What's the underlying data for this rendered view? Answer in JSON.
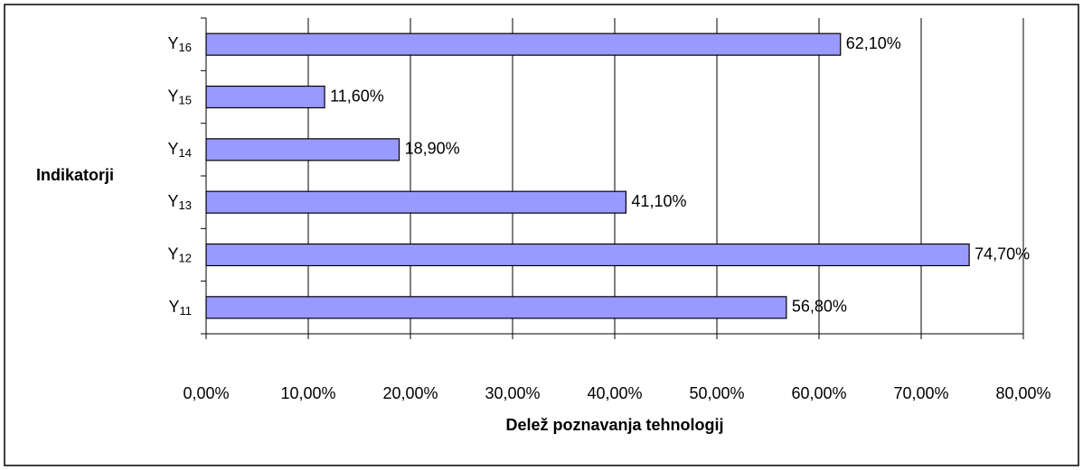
{
  "chart_data": {
    "type": "barh",
    "x_label": "Delež poznavanja tehnologij",
    "y_label": "Indikatorji",
    "categories": [
      "Y11",
      "Y12",
      "Y13",
      "Y14",
      "Y15",
      "Y16"
    ],
    "values": [
      56.8,
      74.7,
      41.1,
      18.9,
      11.6,
      62.1
    ],
    "value_labels": [
      "56,80%",
      "74,70%",
      "41,10%",
      "18,90%",
      "11,60%",
      "62,10%"
    ],
    "color": "#9999ff",
    "xlim": [
      0,
      80
    ],
    "xticks": [
      {
        "value": 0,
        "label": "0,00%"
      },
      {
        "value": 10,
        "label": "10,00%"
      },
      {
        "value": 20,
        "label": "20,00%"
      },
      {
        "value": 30,
        "label": "30,00%"
      },
      {
        "value": 40,
        "label": "40,00%"
      },
      {
        "value": 50,
        "label": "50,00%"
      },
      {
        "value": 60,
        "label": "60,00%"
      },
      {
        "value": 70,
        "label": "70,00%"
      },
      {
        "value": 80,
        "label": "80,00%"
      }
    ],
    "grid": true
  }
}
